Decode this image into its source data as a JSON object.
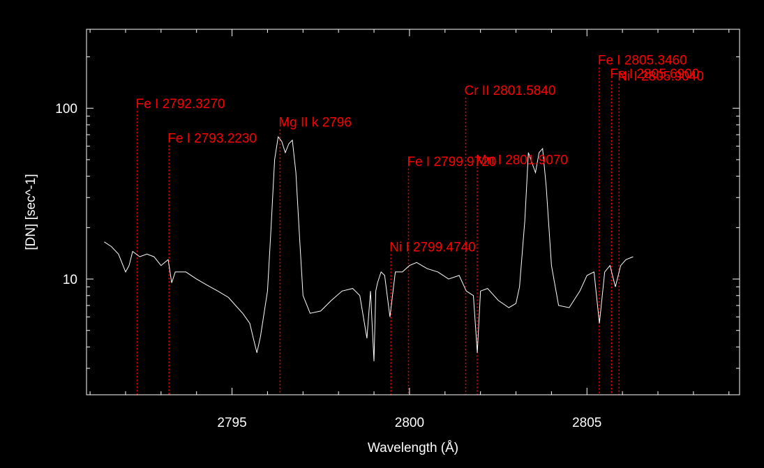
{
  "chart_data": {
    "type": "line",
    "title": "",
    "xlabel": "Wavelength (Å)",
    "ylabel": "[DN] [sec^-1]",
    "xlim": [
      2790.9,
      2809.3
    ],
    "ylim": [
      2.1,
      290
    ],
    "yscale": "log",
    "grid": false,
    "x_ticks": [
      2795,
      2800,
      2805
    ],
    "y_ticks": [
      10,
      100
    ],
    "colors": {
      "background": "#000000",
      "axes": "#ffffff",
      "spectrum": "#ffffff",
      "line_markers": "#ff0000"
    },
    "spectrum": {
      "x": [
        2791.4,
        2791.6,
        2791.8,
        2792.0,
        2792.1,
        2792.2,
        2792.4,
        2792.6,
        2792.8,
        2793.0,
        2793.2,
        2793.3,
        2793.4,
        2793.7,
        2794.0,
        2794.3,
        2794.6,
        2794.9,
        2795.1,
        2795.3,
        2795.5,
        2795.6,
        2795.7,
        2795.8,
        2796.0,
        2796.1,
        2796.2,
        2796.3,
        2796.4,
        2796.5,
        2796.6,
        2796.7,
        2796.8,
        2796.9,
        2797.0,
        2797.2,
        2797.5,
        2797.8,
        2798.1,
        2798.4,
        2798.6,
        2798.8,
        2798.9,
        2799.0,
        2799.05,
        2799.1,
        2799.2,
        2799.3,
        2799.45,
        2799.6,
        2799.8,
        2800.0,
        2800.2,
        2800.5,
        2800.8,
        2801.1,
        2801.4,
        2801.6,
        2801.8,
        2801.91,
        2802.0,
        2802.2,
        2802.5,
        2802.8,
        2803.0,
        2803.1,
        2803.25,
        2803.35,
        2803.45,
        2803.55,
        2803.65,
        2803.75,
        2803.85,
        2804.0,
        2804.2,
        2804.5,
        2804.8,
        2805.0,
        2805.2,
        2805.35,
        2805.5,
        2805.65,
        2805.8,
        2805.95,
        2806.1,
        2806.3
      ],
      "y": [
        16.5,
        15.5,
        14,
        11,
        12,
        14.5,
        13.5,
        14,
        13.5,
        12,
        13,
        9.5,
        11,
        11,
        10,
        9.2,
        8.5,
        7.8,
        7,
        6.3,
        5.5,
        4.5,
        3.7,
        4.6,
        8.5,
        20,
        50,
        68,
        64,
        55,
        62,
        65,
        42,
        18,
        8,
        6.3,
        6.5,
        7.5,
        8.5,
        8.8,
        8.0,
        4.5,
        8.5,
        3.3,
        8.5,
        9.5,
        11,
        10.5,
        6,
        11,
        11,
        12,
        12.5,
        11.5,
        11,
        10,
        10.5,
        8.5,
        8.0,
        3.7,
        8.5,
        8.8,
        7.5,
        6.8,
        7.2,
        9.0,
        22,
        55,
        48,
        42,
        55,
        58,
        35,
        12,
        7.0,
        6.8,
        8.5,
        10.5,
        11,
        5.5,
        11,
        12,
        9.0,
        12,
        13,
        13.5
      ]
    },
    "annotations": [
      {
        "label": "Fe I 2792.3270",
        "x": 2792.327,
        "y": 100
      },
      {
        "label": "Fe I 2793.2230",
        "x": 2793.223,
        "y": 63
      },
      {
        "label": "Mg II k 2796",
        "x": 2796.352,
        "y": 78
      },
      {
        "label": "Ni I 2799.4740",
        "x": 2799.474,
        "y": 14.5
      },
      {
        "label": "Fe I 2799.9720",
        "x": 2799.972,
        "y": 46
      },
      {
        "label": "Cr II 2801.5840",
        "x": 2801.584,
        "y": 120
      },
      {
        "label": "Mn I 2801.9070",
        "x": 2801.907,
        "y": 47
      },
      {
        "label": "Fe I 2805.3460",
        "x": 2805.346,
        "y": 180
      },
      {
        "label": "Fe I 2805.6900",
        "x": 2805.69,
        "y": 150
      },
      {
        "label": "Ni I 2805.9040",
        "x": 2805.904,
        "y": 145
      }
    ]
  }
}
